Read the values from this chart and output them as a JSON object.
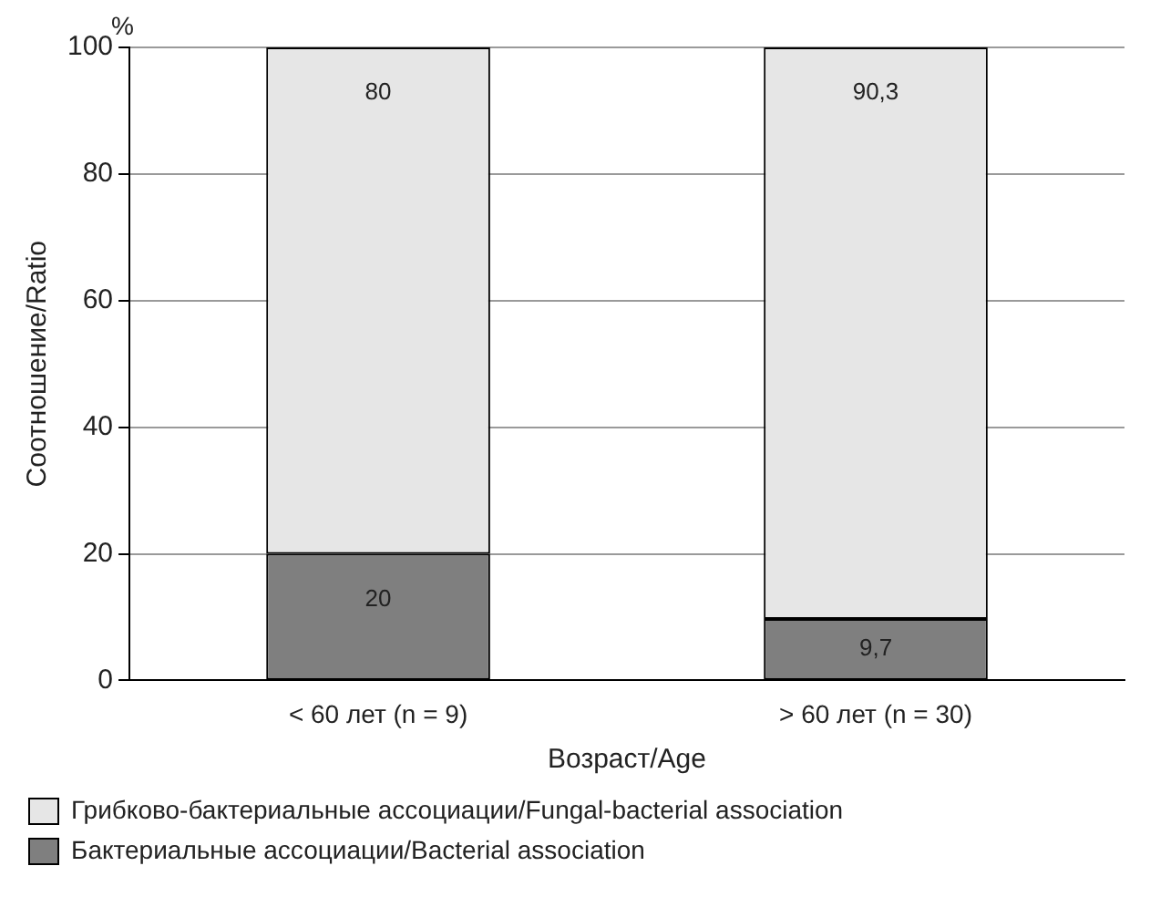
{
  "chart_data": {
    "type": "bar",
    "stacked": true,
    "categories": [
      "< 60 лет (n = 9)",
      "> 60 лет (n = 30)"
    ],
    "series": [
      {
        "name": "Бактериальные ассоциации/Bacterial association",
        "color": "#7f7f7f",
        "values": [
          20,
          9.7
        ],
        "value_labels": [
          "20",
          "9,7"
        ]
      },
      {
        "name": "Грибково-бактериальные ассоциации/Fungal-bacterial association",
        "color": "#e6e6e6",
        "values": [
          80,
          90.3
        ],
        "value_labels": [
          "80",
          "90,3"
        ]
      }
    ],
    "ylim": [
      0,
      100
    ],
    "yticks": [
      0,
      20,
      40,
      60,
      80,
      100
    ],
    "grid": "y",
    "legend": "bottom",
    "xlabel": "Возраст/Age",
    "ylabel": "Соотношение/Ratio",
    "annotations": [
      "%"
    ]
  }
}
